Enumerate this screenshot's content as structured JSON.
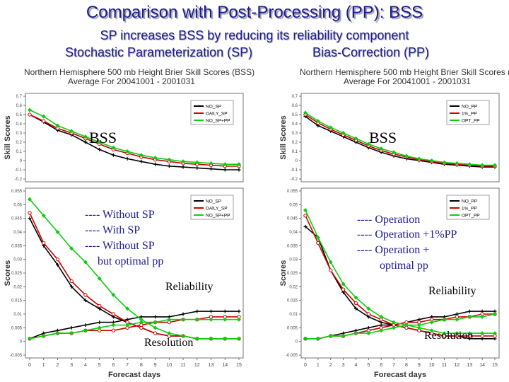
{
  "slide": {
    "title": "Comparison with Post-Processing (PP): BSS",
    "subtitle": "SP increases BSS by reducing its reliability component",
    "left_label": "Stochastic Parameterization (SP)",
    "right_label": "Bias-Correction (PP)"
  },
  "annotations": {
    "bss_left": "BSS",
    "bss_right": "BSS",
    "reliability_left": "Reliability",
    "reliability_right": "Reliability",
    "resolution_left": "Resolution",
    "resolution_right": "Resolution",
    "left_notes": [
      "---- Without SP",
      "---- With SP",
      "---- Without SP",
      "but optimal pp"
    ],
    "right_notes": [
      "---- Operation",
      "---- Operation +1%PP",
      "---- Operation +",
      "optimal pp"
    ]
  },
  "chart_titles": {
    "line1": "Northern Hemisphere 500 mb Height Brier Skill Scores (BSS)",
    "line2": "Average For 20041001 - 2001031"
  },
  "colors": {
    "series1": "#000000",
    "series2": "#cc0000",
    "series3": "#11cc11",
    "title": "#1a1a99",
    "note": "#1a1a99"
  },
  "chart_data": [
    {
      "type": "line",
      "panel": "left-top",
      "ylabel": "Skill Scores",
      "xlabel": "",
      "xlim": [
        0,
        15
      ],
      "ylim": [
        -0.2,
        0.7
      ],
      "yticks": [
        "0.7",
        "0.6",
        "0.5",
        "0.4",
        "0.3",
        "0.2",
        "0.1",
        "0",
        "-0.1",
        "-0.2"
      ],
      "xticks": [],
      "legend": [
        "NO_SP",
        "DAILY_SP",
        "NO_SP+PP"
      ],
      "series": [
        {
          "name": "NO_SP",
          "values": [
            0.5,
            0.42,
            0.33,
            0.28,
            0.2,
            0.12,
            0.06,
            0.02,
            -0.01,
            -0.04,
            -0.06,
            -0.07,
            -0.08,
            -0.09,
            -0.1,
            -0.1
          ]
        },
        {
          "name": "DAILY_SP",
          "values": [
            0.5,
            0.43,
            0.35,
            0.3,
            0.24,
            0.18,
            0.12,
            0.08,
            0.04,
            0.01,
            -0.01,
            -0.03,
            -0.04,
            -0.05,
            -0.06,
            -0.06
          ]
        },
        {
          "name": "NO_SP+PP",
          "values": [
            0.55,
            0.48,
            0.38,
            0.32,
            0.26,
            0.2,
            0.14,
            0.1,
            0.06,
            0.03,
            0.01,
            -0.01,
            -0.02,
            -0.03,
            -0.04,
            -0.04
          ]
        }
      ]
    },
    {
      "type": "line",
      "panel": "right-top",
      "ylabel": "Skill Scores",
      "xlabel": "",
      "xlim": [
        0,
        15
      ],
      "ylim": [
        -0.2,
        0.7
      ],
      "yticks": [
        "0.7",
        "0.6",
        "0.5",
        "0.4",
        "0.3",
        "0.2",
        "0.1",
        "0",
        "-0.1",
        "-0.2"
      ],
      "xticks": [],
      "legend": [
        "NO_PP",
        "1%_PP",
        "OPT_PP"
      ],
      "series": [
        {
          "name": "NO_PP",
          "values": [
            0.48,
            0.38,
            0.32,
            0.26,
            0.2,
            0.14,
            0.09,
            0.05,
            0.02,
            0.0,
            -0.02,
            -0.04,
            -0.05,
            -0.06,
            -0.07,
            -0.07
          ]
        },
        {
          "name": "1%_PP",
          "values": [
            0.5,
            0.41,
            0.34,
            0.28,
            0.22,
            0.16,
            0.11,
            0.07,
            0.04,
            0.01,
            -0.01,
            -0.03,
            -0.04,
            -0.05,
            -0.06,
            -0.06
          ]
        },
        {
          "name": "OPT_PP",
          "values": [
            0.52,
            0.43,
            0.36,
            0.3,
            0.24,
            0.18,
            0.13,
            0.09,
            0.05,
            0.02,
            0.0,
            -0.02,
            -0.03,
            -0.04,
            -0.05,
            -0.05
          ]
        }
      ]
    },
    {
      "type": "line",
      "panel": "left-bottom",
      "ylabel": "Scores",
      "xlabel": "Forecast days",
      "xlim": [
        0,
        15
      ],
      "ylim": [
        -0.005,
        0.055
      ],
      "yticks": [
        "0.055",
        "0.05",
        "0.045",
        "0.04",
        "0.035",
        "0.03",
        "0.025",
        "0.02",
        "0.015",
        "0.01",
        "0.005",
        "0",
        "-0.005"
      ],
      "xticks": [
        "0",
        "1",
        "2",
        "3",
        "4",
        "5",
        "6",
        "7",
        "8",
        "9",
        "10",
        "11",
        "12",
        "13",
        "14",
        "15"
      ],
      "legend": [
        "NO_SP",
        "DAILY_SP",
        "NO_SP+PP"
      ],
      "series": [
        {
          "name": "NO_SP reliability",
          "values": [
            0.045,
            0.035,
            0.028,
            0.02,
            0.015,
            0.012,
            0.009,
            0.007,
            0.005,
            0.003,
            0.002,
            0.002,
            0.001,
            0.001,
            0.001,
            0.001
          ]
        },
        {
          "name": "NO_SP resolution",
          "values": [
            0.001,
            0.003,
            0.004,
            0.005,
            0.006,
            0.007,
            0.007,
            0.008,
            0.009,
            0.009,
            0.009,
            0.01,
            0.011,
            0.011,
            0.011,
            0.011
          ]
        },
        {
          "name": "DAILY_SP reliability",
          "values": [
            0.047,
            0.036,
            0.03,
            0.022,
            0.017,
            0.013,
            0.01,
            0.007,
            0.005,
            0.003,
            0.002,
            0.002,
            0.001,
            0.001,
            0.001,
            0.001
          ]
        },
        {
          "name": "DAILY_SP resolution",
          "values": [
            0.001,
            0.002,
            0.003,
            0.003,
            0.004,
            0.004,
            0.004,
            0.005,
            0.006,
            0.007,
            0.007,
            0.008,
            0.008,
            0.009,
            0.009,
            0.009
          ]
        },
        {
          "name": "NO_SP+PP reliability",
          "values": [
            0.052,
            0.046,
            0.04,
            0.034,
            0.029,
            0.023,
            0.017,
            0.012,
            0.008,
            0.005,
            0.003,
            0.002,
            0.001,
            0.001,
            0.001,
            0.001
          ]
        },
        {
          "name": "NO_SP+PP resolution",
          "values": [
            0.001,
            0.002,
            0.003,
            0.003,
            0.004,
            0.005,
            0.006,
            0.006,
            0.007,
            0.007,
            0.008,
            0.008,
            0.008,
            0.008,
            0.008,
            0.008
          ]
        }
      ]
    },
    {
      "type": "line",
      "panel": "right-bottom",
      "ylabel": "Scores",
      "xlabel": "Forecast days",
      "xlim": [
        0,
        15
      ],
      "ylim": [
        -0.005,
        0.055
      ],
      "yticks": [
        "0.055",
        "0.05",
        "0.045",
        "0.04",
        "0.035",
        "0.03",
        "0.025",
        "0.02",
        "0.015",
        "0.01",
        "0.005",
        "0",
        "-0.005"
      ],
      "xticks": [
        "0",
        "1",
        "2",
        "3",
        "4",
        "5",
        "6",
        "7",
        "8",
        "9",
        "10",
        "11",
        "12",
        "13",
        "14",
        "15"
      ],
      "legend": [
        "NO_PP",
        "1%_PP",
        "OPT_PP"
      ],
      "series": [
        {
          "name": "NO_PP reliability",
          "values": [
            0.042,
            0.038,
            0.026,
            0.018,
            0.012,
            0.009,
            0.007,
            0.006,
            0.005,
            0.004,
            0.003,
            0.002,
            0.002,
            0.001,
            0.001,
            0.001
          ]
        },
        {
          "name": "NO_PP resolution",
          "values": [
            0.001,
            0.001,
            0.002,
            0.003,
            0.004,
            0.005,
            0.006,
            0.006,
            0.007,
            0.008,
            0.009,
            0.009,
            0.01,
            0.011,
            0.011,
            0.011
          ]
        },
        {
          "name": "1%_PP reliability",
          "values": [
            0.046,
            0.036,
            0.026,
            0.019,
            0.014,
            0.01,
            0.008,
            0.006,
            0.005,
            0.004,
            0.003,
            0.002,
            0.002,
            0.002,
            0.002,
            0.002
          ]
        },
        {
          "name": "1%_PP resolution",
          "values": [
            0.001,
            0.001,
            0.002,
            0.002,
            0.003,
            0.004,
            0.005,
            0.006,
            0.007,
            0.007,
            0.008,
            0.008,
            0.009,
            0.009,
            0.01,
            0.01
          ]
        },
        {
          "name": "OPT_PP reliability",
          "values": [
            0.048,
            0.038,
            0.029,
            0.021,
            0.016,
            0.012,
            0.009,
            0.007,
            0.006,
            0.005,
            0.004,
            0.003,
            0.003,
            0.003,
            0.003,
            0.003
          ]
        },
        {
          "name": "OPT_PP resolution",
          "values": [
            0.001,
            0.001,
            0.002,
            0.002,
            0.003,
            0.003,
            0.004,
            0.005,
            0.006,
            0.006,
            0.007,
            0.008,
            0.008,
            0.009,
            0.009,
            0.01
          ]
        }
      ]
    }
  ]
}
